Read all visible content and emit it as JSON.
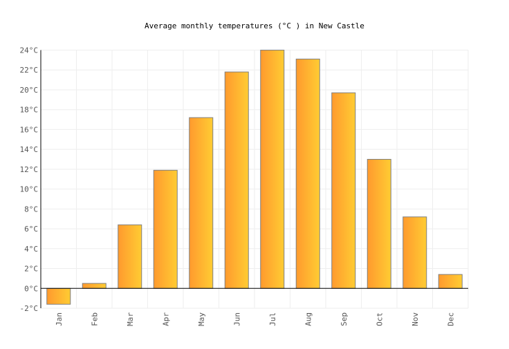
{
  "chart_data": {
    "type": "bar",
    "title": "Average monthly temperatures (°C ) in New Castle",
    "xlabel": "",
    "ylabel": "",
    "categories": [
      "Jan",
      "Feb",
      "Mar",
      "Apr",
      "May",
      "Jun",
      "Jul",
      "Aug",
      "Sep",
      "Oct",
      "Nov",
      "Dec"
    ],
    "values": [
      -1.6,
      0.5,
      6.4,
      11.9,
      17.2,
      21.8,
      24.0,
      23.1,
      19.7,
      13.0,
      7.2,
      1.4
    ],
    "ylim": [
      -2,
      24
    ],
    "yticks": [
      "-2°C",
      "0°C",
      "2°C",
      "4°C",
      "6°C",
      "8°C",
      "10°C",
      "12°C",
      "14°C",
      "16°C",
      "18°C",
      "20°C",
      "22°C",
      "24°C"
    ],
    "grid": true,
    "colors": {
      "bar_start": "#ff9a2e",
      "bar_end": "#ffcc33",
      "bar_stroke": "#7f7f7f",
      "grid": "#eeeeee"
    }
  }
}
